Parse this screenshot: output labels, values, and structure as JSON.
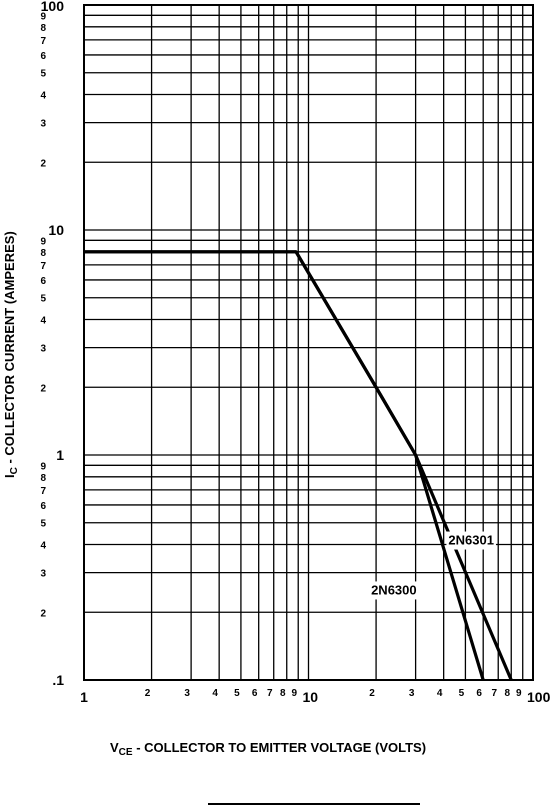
{
  "chart_data": {
    "type": "line",
    "xscale": "log",
    "yscale": "log",
    "xlim": [
      1,
      100
    ],
    "ylim": [
      0.1,
      100
    ],
    "grid": true,
    "xlabel": {
      "main": "V",
      "sub": "CE",
      "rest": " - COLLECTOR TO EMITTER VOLTAGE (VOLTS)"
    },
    "ylabel": {
      "main": "I",
      "sub": "C",
      "rest": " - COLLECTOR CURRENT (AMPERES)"
    },
    "x_major_ticks": [
      {
        "value": 1,
        "label": "1"
      },
      {
        "value": 10,
        "label": "10"
      },
      {
        "value": 100,
        "label": "100"
      }
    ],
    "x_minor_ticks": [
      {
        "value": 2,
        "label": "2"
      },
      {
        "value": 3,
        "label": "3"
      },
      {
        "value": 4,
        "label": "4"
      },
      {
        "value": 5,
        "label": "5"
      },
      {
        "value": 6,
        "label": "6"
      },
      {
        "value": 7,
        "label": "7"
      },
      {
        "value": 8,
        "label": "8"
      },
      {
        "value": 9,
        "label": "9"
      },
      {
        "value": 20,
        "label": "2"
      },
      {
        "value": 30,
        "label": "3"
      },
      {
        "value": 40,
        "label": "4"
      },
      {
        "value": 50,
        "label": "5"
      },
      {
        "value": 60,
        "label": "6"
      },
      {
        "value": 70,
        "label": "7"
      },
      {
        "value": 80,
        "label": "8"
      },
      {
        "value": 90,
        "label": "9"
      }
    ],
    "y_major_ticks": [
      {
        "value": 0.1,
        "label": ".1"
      },
      {
        "value": 1,
        "label": "1"
      },
      {
        "value": 10,
        "label": "10"
      },
      {
        "value": 100,
        "label": "100"
      }
    ],
    "y_minor_ticks": [
      {
        "value": 0.2,
        "label": "2"
      },
      {
        "value": 0.3,
        "label": "3"
      },
      {
        "value": 0.4,
        "label": "4"
      },
      {
        "value": 0.5,
        "label": "5"
      },
      {
        "value": 0.6,
        "label": "6"
      },
      {
        "value": 0.7,
        "label": "7"
      },
      {
        "value": 0.8,
        "label": "8"
      },
      {
        "value": 0.9,
        "label": "9"
      },
      {
        "value": 2,
        "label": "2"
      },
      {
        "value": 3,
        "label": "3"
      },
      {
        "value": 4,
        "label": "4"
      },
      {
        "value": 5,
        "label": "5"
      },
      {
        "value": 6,
        "label": "6"
      },
      {
        "value": 7,
        "label": "7"
      },
      {
        "value": 8,
        "label": "8"
      },
      {
        "value": 9,
        "label": "9"
      },
      {
        "value": 20,
        "label": "2"
      },
      {
        "value": 30,
        "label": "3"
      },
      {
        "value": 40,
        "label": "4"
      },
      {
        "value": 50,
        "label": "5"
      },
      {
        "value": 60,
        "label": "6"
      },
      {
        "value": 70,
        "label": "7"
      },
      {
        "value": 80,
        "label": "8"
      },
      {
        "value": 90,
        "label": "9"
      }
    ],
    "series": [
      {
        "name": "2N6301",
        "points": [
          [
            1,
            8
          ],
          [
            8.8,
            8
          ],
          [
            20,
            2
          ],
          [
            30,
            1
          ],
          [
            80,
            0.1
          ]
        ]
      },
      {
        "name": "2N6300",
        "points": [
          [
            1,
            8
          ],
          [
            8.8,
            8
          ],
          [
            20,
            2
          ],
          [
            30,
            1
          ],
          [
            60,
            0.1
          ]
        ]
      }
    ],
    "series_label_anchor": [
      {
        "name": "2N6301",
        "x": 42,
        "y": 0.4
      },
      {
        "name": "2N6300",
        "x": 19,
        "y": 0.24
      }
    ]
  }
}
